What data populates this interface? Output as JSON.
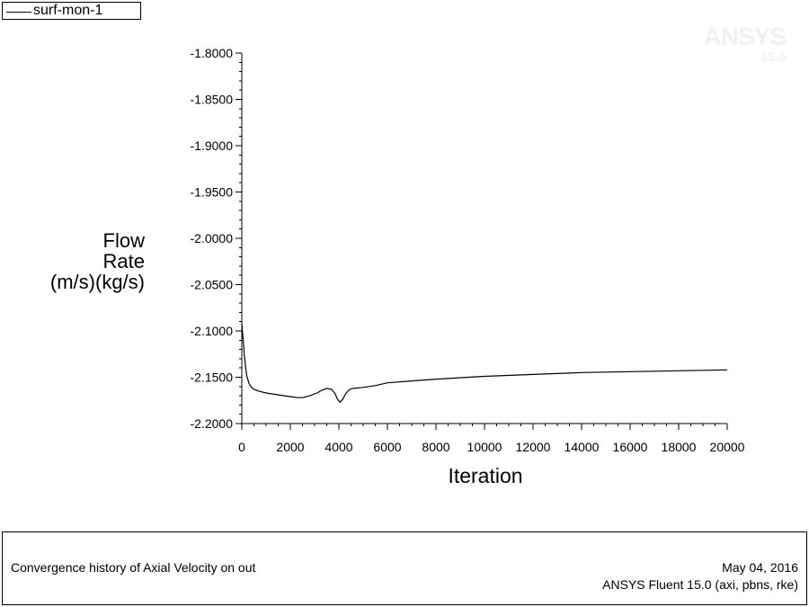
{
  "legend": {
    "label": "surf-mon-1"
  },
  "watermark": {
    "name": "ANSYS",
    "version": "15.0"
  },
  "caption": {
    "title": "Convergence history of Axial Velocity on out",
    "date": "May 04, 2016",
    "solver": "ANSYS Fluent 15.0 (axi, pbns, rke)"
  },
  "colors": {
    "line": "#000000",
    "background": "#ffffff",
    "watermark": "#f1f1f1"
  },
  "chart_data": {
    "type": "line",
    "title": "",
    "xlabel": "Iteration",
    "ylabel_lines": [
      "Flow",
      "Rate",
      "(m/s)(kg/s)"
    ],
    "xlim": [
      0,
      20000
    ],
    "ylim": [
      -2.2,
      -1.8
    ],
    "x_ticks": [
      0,
      2000,
      4000,
      6000,
      8000,
      10000,
      12000,
      14000,
      16000,
      18000,
      20000
    ],
    "x_tick_labels": [
      "0",
      "2000",
      "4000",
      "6000",
      "8000",
      "10000",
      "12000",
      "14000",
      "16000",
      "18000",
      "20000"
    ],
    "y_ticks": [
      -1.8,
      -1.85,
      -1.9,
      -1.95,
      -2.0,
      -2.05,
      -2.1,
      -2.15,
      -2.2
    ],
    "y_tick_labels": [
      "-1.8000",
      "-1.8500",
      "-1.9000",
      "-1.9500",
      "-2.0000",
      "-2.0500",
      "-2.1000",
      "-2.1500",
      "-2.2000"
    ],
    "grid": false,
    "legend_position": "top-left",
    "series": [
      {
        "name": "surf-mon-1",
        "x": [
          0,
          50,
          100,
          150,
          200,
          300,
          400,
          500,
          700,
          1000,
          1500,
          2000,
          2300,
          2500,
          2800,
          3100,
          3300,
          3500,
          3700,
          3850,
          3950,
          4050,
          4150,
          4300,
          4450,
          4600,
          5000,
          5500,
          6000,
          7000,
          8000,
          10000,
          12000,
          14000,
          16000,
          18000,
          20000
        ],
        "y": [
          -2.092,
          -2.108,
          -2.125,
          -2.138,
          -2.148,
          -2.157,
          -2.161,
          -2.163,
          -2.165,
          -2.167,
          -2.169,
          -2.171,
          -2.172,
          -2.172,
          -2.17,
          -2.167,
          -2.164,
          -2.162,
          -2.163,
          -2.168,
          -2.174,
          -2.177,
          -2.174,
          -2.167,
          -2.163,
          -2.162,
          -2.161,
          -2.159,
          -2.156,
          -2.154,
          -2.152,
          -2.149,
          -2.147,
          -2.145,
          -2.144,
          -2.143,
          -2.142
        ]
      }
    ]
  }
}
